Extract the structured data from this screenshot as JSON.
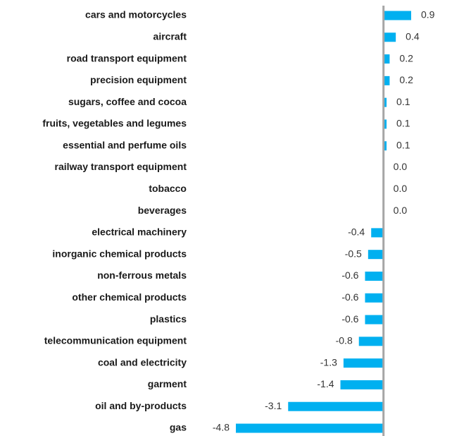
{
  "chart_data": {
    "type": "hbar",
    "categories": [
      "cars and motorcycles",
      "aircraft",
      "road transport equipment",
      "precision equipment",
      "sugars, coffee and cocoa",
      "fruits, vegetables and legumes",
      "essential and perfume oils",
      "railway transport equipment",
      "tobacco",
      "beverages",
      "electrical machinery",
      "inorganic chemical products",
      "non-ferrous metals",
      "other chemical products",
      "plastics",
      "telecommunication equipment",
      "coal and electricity",
      "garment",
      "oil and by-products",
      "gas"
    ],
    "values": [
      0.9,
      0.4,
      0.2,
      0.2,
      0.1,
      0.1,
      0.1,
      0,
      0,
      0,
      -0.4,
      -0.5,
      -0.6,
      -0.6,
      -0.6,
      -0.8,
      -1.3,
      -1.4,
      -3.1,
      -4.8
    ],
    "value_labels": [
      "0.9",
      "0.4",
      "0.2",
      "0.2",
      "0.1",
      "0.1",
      "0.1",
      "0.0",
      "0.0",
      "0.0",
      "-0.4",
      "-0.5",
      "-0.6",
      "-0.6",
      "-0.6",
      "-0.8",
      "-1.3",
      "-1.4",
      "-3.1",
      "-4.8"
    ],
    "color": "#00b0f0"
  }
}
